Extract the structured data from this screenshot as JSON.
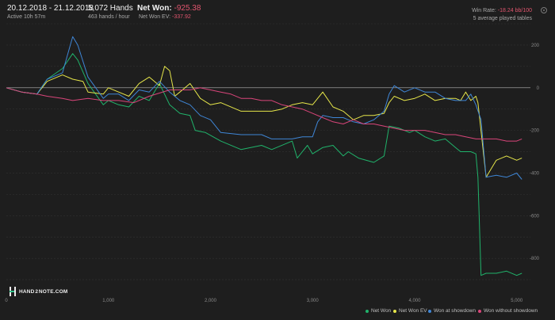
{
  "header": {
    "date_range": "20.12.2018 - 21.12.2018",
    "active": "Active 10h 57m",
    "hands": "5,072 Hands",
    "hands_per_hour": "463 hands / hour",
    "net_won_label": "Net Won:",
    "net_won_value": "-925.38",
    "net_won_ev_label": "Net Won  EV:",
    "net_won_ev_value": "-337.92",
    "win_rate_label": "Win Rate:",
    "win_rate_value": "-18.24 bb/100",
    "tables": "5 average played tables"
  },
  "logo_text": "HAND 2 NOTE.COM",
  "chart_data": {
    "type": "line",
    "xlim": [
      0,
      5072
    ],
    "ylim": [
      -1000,
      300
    ],
    "x_ticks": [
      0,
      1000,
      2000,
      3000,
      4000,
      5000
    ],
    "x_tick_labels": [
      "0",
      "1,000",
      "2,000",
      "3,000",
      "4,000",
      "5,000"
    ],
    "y_ticks": [
      200,
      0,
      -200,
      -400,
      -600,
      -800
    ],
    "y_tick_labels": [
      "200",
      "0",
      "-200",
      "-400",
      "-600",
      "-800"
    ],
    "grid": true,
    "legend_position": "bottom-right",
    "colors": {
      "Net Won": "#20b36b",
      "Net Won  EV": "#e6e64a",
      "Won at showdown": "#3f86d6",
      "Won without showdown": "#d9457a"
    },
    "series": [
      {
        "name": "Net Won",
        "x": [
          0,
          150,
          300,
          400,
          550,
          650,
          700,
          800,
          950,
          1000,
          1100,
          1200,
          1300,
          1400,
          1500,
          1600,
          1700,
          1800,
          1850,
          1950,
          2100,
          2300,
          2500,
          2600,
          2800,
          2850,
          2950,
          3000,
          3100,
          3200,
          3300,
          3350,
          3450,
          3600,
          3700,
          3750,
          3850,
          3950,
          4000,
          4100,
          4200,
          4300,
          4400,
          4450,
          4550,
          4600,
          4620,
          4650,
          4700,
          4800,
          4900,
          5000,
          5050
        ],
        "y": [
          0,
          -20,
          -30,
          40,
          90,
          160,
          130,
          20,
          -80,
          -60,
          -80,
          -90,
          -40,
          -60,
          20,
          -80,
          -120,
          -130,
          -200,
          -210,
          -250,
          -290,
          -270,
          -290,
          -250,
          -330,
          -270,
          -310,
          -280,
          -270,
          -320,
          -300,
          -330,
          -350,
          -320,
          -180,
          -190,
          -210,
          -200,
          -230,
          -250,
          -240,
          -280,
          -300,
          -300,
          -310,
          -420,
          -880,
          -870,
          -870,
          -860,
          -880,
          -870
        ]
      },
      {
        "name": "Net Won  EV",
        "x": [
          0,
          150,
          300,
          400,
          550,
          650,
          750,
          800,
          950,
          1000,
          1100,
          1200,
          1300,
          1400,
          1500,
          1550,
          1600,
          1650,
          1700,
          1800,
          1900,
          2000,
          2100,
          2300,
          2500,
          2600,
          2700,
          2800,
          2900,
          3000,
          3100,
          3200,
          3300,
          3400,
          3500,
          3600,
          3700,
          3750,
          3800,
          3900,
          4000,
          4100,
          4200,
          4300,
          4400,
          4450,
          4500,
          4550,
          4600,
          4620,
          4700,
          4800,
          4900,
          5000,
          5050
        ],
        "y": [
          0,
          -20,
          -30,
          30,
          60,
          40,
          30,
          -20,
          -30,
          0,
          -20,
          -40,
          20,
          50,
          10,
          100,
          80,
          -40,
          -20,
          20,
          -50,
          -80,
          -70,
          -110,
          -110,
          -110,
          -100,
          -80,
          -70,
          -80,
          -20,
          -90,
          -110,
          -150,
          -130,
          -130,
          -120,
          -70,
          -40,
          -60,
          -50,
          -30,
          -60,
          -50,
          -50,
          -60,
          -20,
          -60,
          -40,
          -70,
          -420,
          -340,
          -320,
          -340,
          -330
        ]
      },
      {
        "name": "Won at showdown",
        "x": [
          0,
          150,
          300,
          400,
          550,
          650,
          700,
          800,
          950,
          1000,
          1100,
          1200,
          1300,
          1400,
          1500,
          1600,
          1700,
          1800,
          1900,
          2000,
          2100,
          2300,
          2500,
          2600,
          2800,
          2900,
          3000,
          3050,
          3100,
          3200,
          3300,
          3350,
          3400,
          3500,
          3600,
          3700,
          3750,
          3800,
          3900,
          4000,
          4100,
          4200,
          4300,
          4400,
          4500,
          4550,
          4600,
          4650,
          4700,
          4800,
          4900,
          5000,
          5050
        ],
        "y": [
          0,
          -20,
          -30,
          40,
          70,
          240,
          200,
          50,
          -50,
          -30,
          -30,
          -60,
          -10,
          -20,
          30,
          -20,
          -60,
          -80,
          -130,
          -150,
          -210,
          -220,
          -220,
          -240,
          -240,
          -230,
          -230,
          -160,
          -130,
          -140,
          -140,
          -150,
          -160,
          -170,
          -150,
          -110,
          -30,
          10,
          -20,
          0,
          -20,
          -20,
          -50,
          -60,
          -60,
          -30,
          -80,
          -150,
          -420,
          -410,
          -420,
          -400,
          -430
        ]
      },
      {
        "name": "Won without showdown",
        "x": [
          0,
          150,
          300,
          400,
          550,
          650,
          800,
          950,
          1100,
          1250,
          1400,
          1600,
          1800,
          1900,
          2000,
          2100,
          2200,
          2300,
          2400,
          2500,
          2600,
          2700,
          2800,
          2900,
          3000,
          3100,
          3200,
          3300,
          3400,
          3500,
          3600,
          3700,
          3800,
          3900,
          4000,
          4100,
          4200,
          4300,
          4400,
          4500,
          4600,
          4700,
          4800,
          4900,
          5000,
          5050
        ],
        "y": [
          0,
          -20,
          -30,
          -40,
          -50,
          -60,
          -50,
          -60,
          -60,
          -70,
          -40,
          -10,
          -10,
          0,
          -10,
          -20,
          -30,
          -50,
          -50,
          -60,
          -60,
          -80,
          -90,
          -100,
          -120,
          -140,
          -160,
          -170,
          -150,
          -170,
          -170,
          -180,
          -190,
          -200,
          -200,
          -200,
          -210,
          -220,
          -220,
          -230,
          -240,
          -240,
          -240,
          -250,
          -250,
          -240
        ]
      }
    ]
  }
}
